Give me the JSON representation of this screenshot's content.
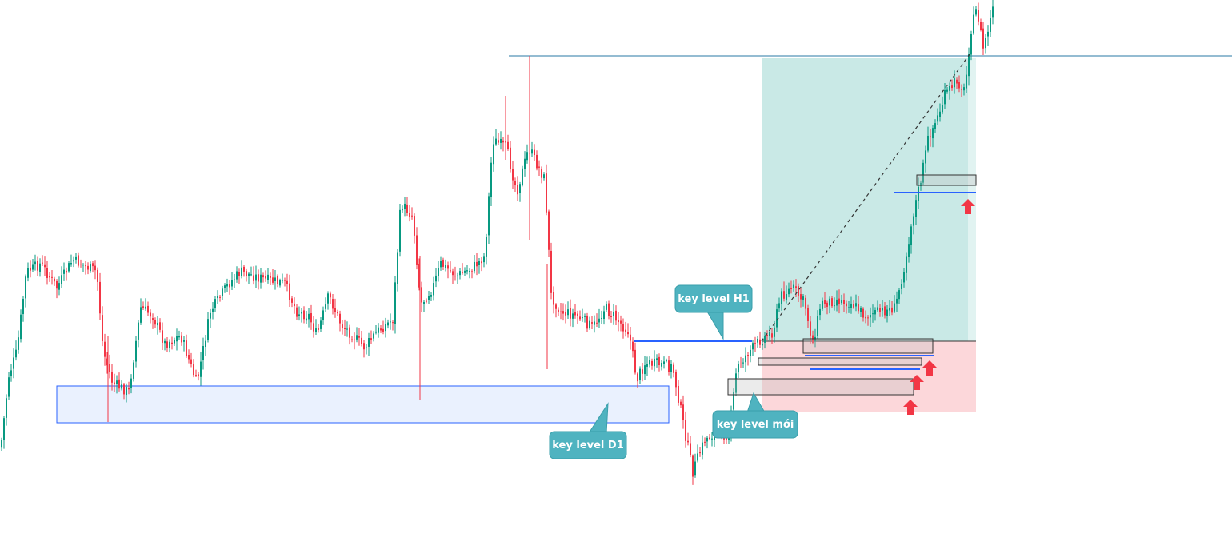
{
  "chart_data": {
    "type": "candlestick",
    "title": "",
    "xlabel": "",
    "ylabel": "",
    "grid": false,
    "colors": {
      "up": "#089981",
      "down": "#f23645",
      "wick_up": "#089981",
      "wick_down": "#f23645"
    },
    "annotations": [
      {
        "id": "h1",
        "text": "key level H1",
        "color": "#4fb3c0"
      },
      {
        "id": "d1",
        "text": "key level D1",
        "color": "#4fb3c0"
      },
      {
        "id": "new",
        "text": "key level mới",
        "color": "#4fb3c0"
      }
    ],
    "zones": {
      "demand_d1": {
        "color": "#2962ff",
        "fill": "#e8f0fe"
      },
      "take_profit": {
        "color": "#26a69a"
      },
      "stop_loss": {
        "color": "#f23645"
      },
      "arrow": {
        "color": "#f23645"
      },
      "level_line": {
        "color": "#2962ff"
      },
      "top_line": {
        "color": "#2a7aa6"
      }
    }
  }
}
